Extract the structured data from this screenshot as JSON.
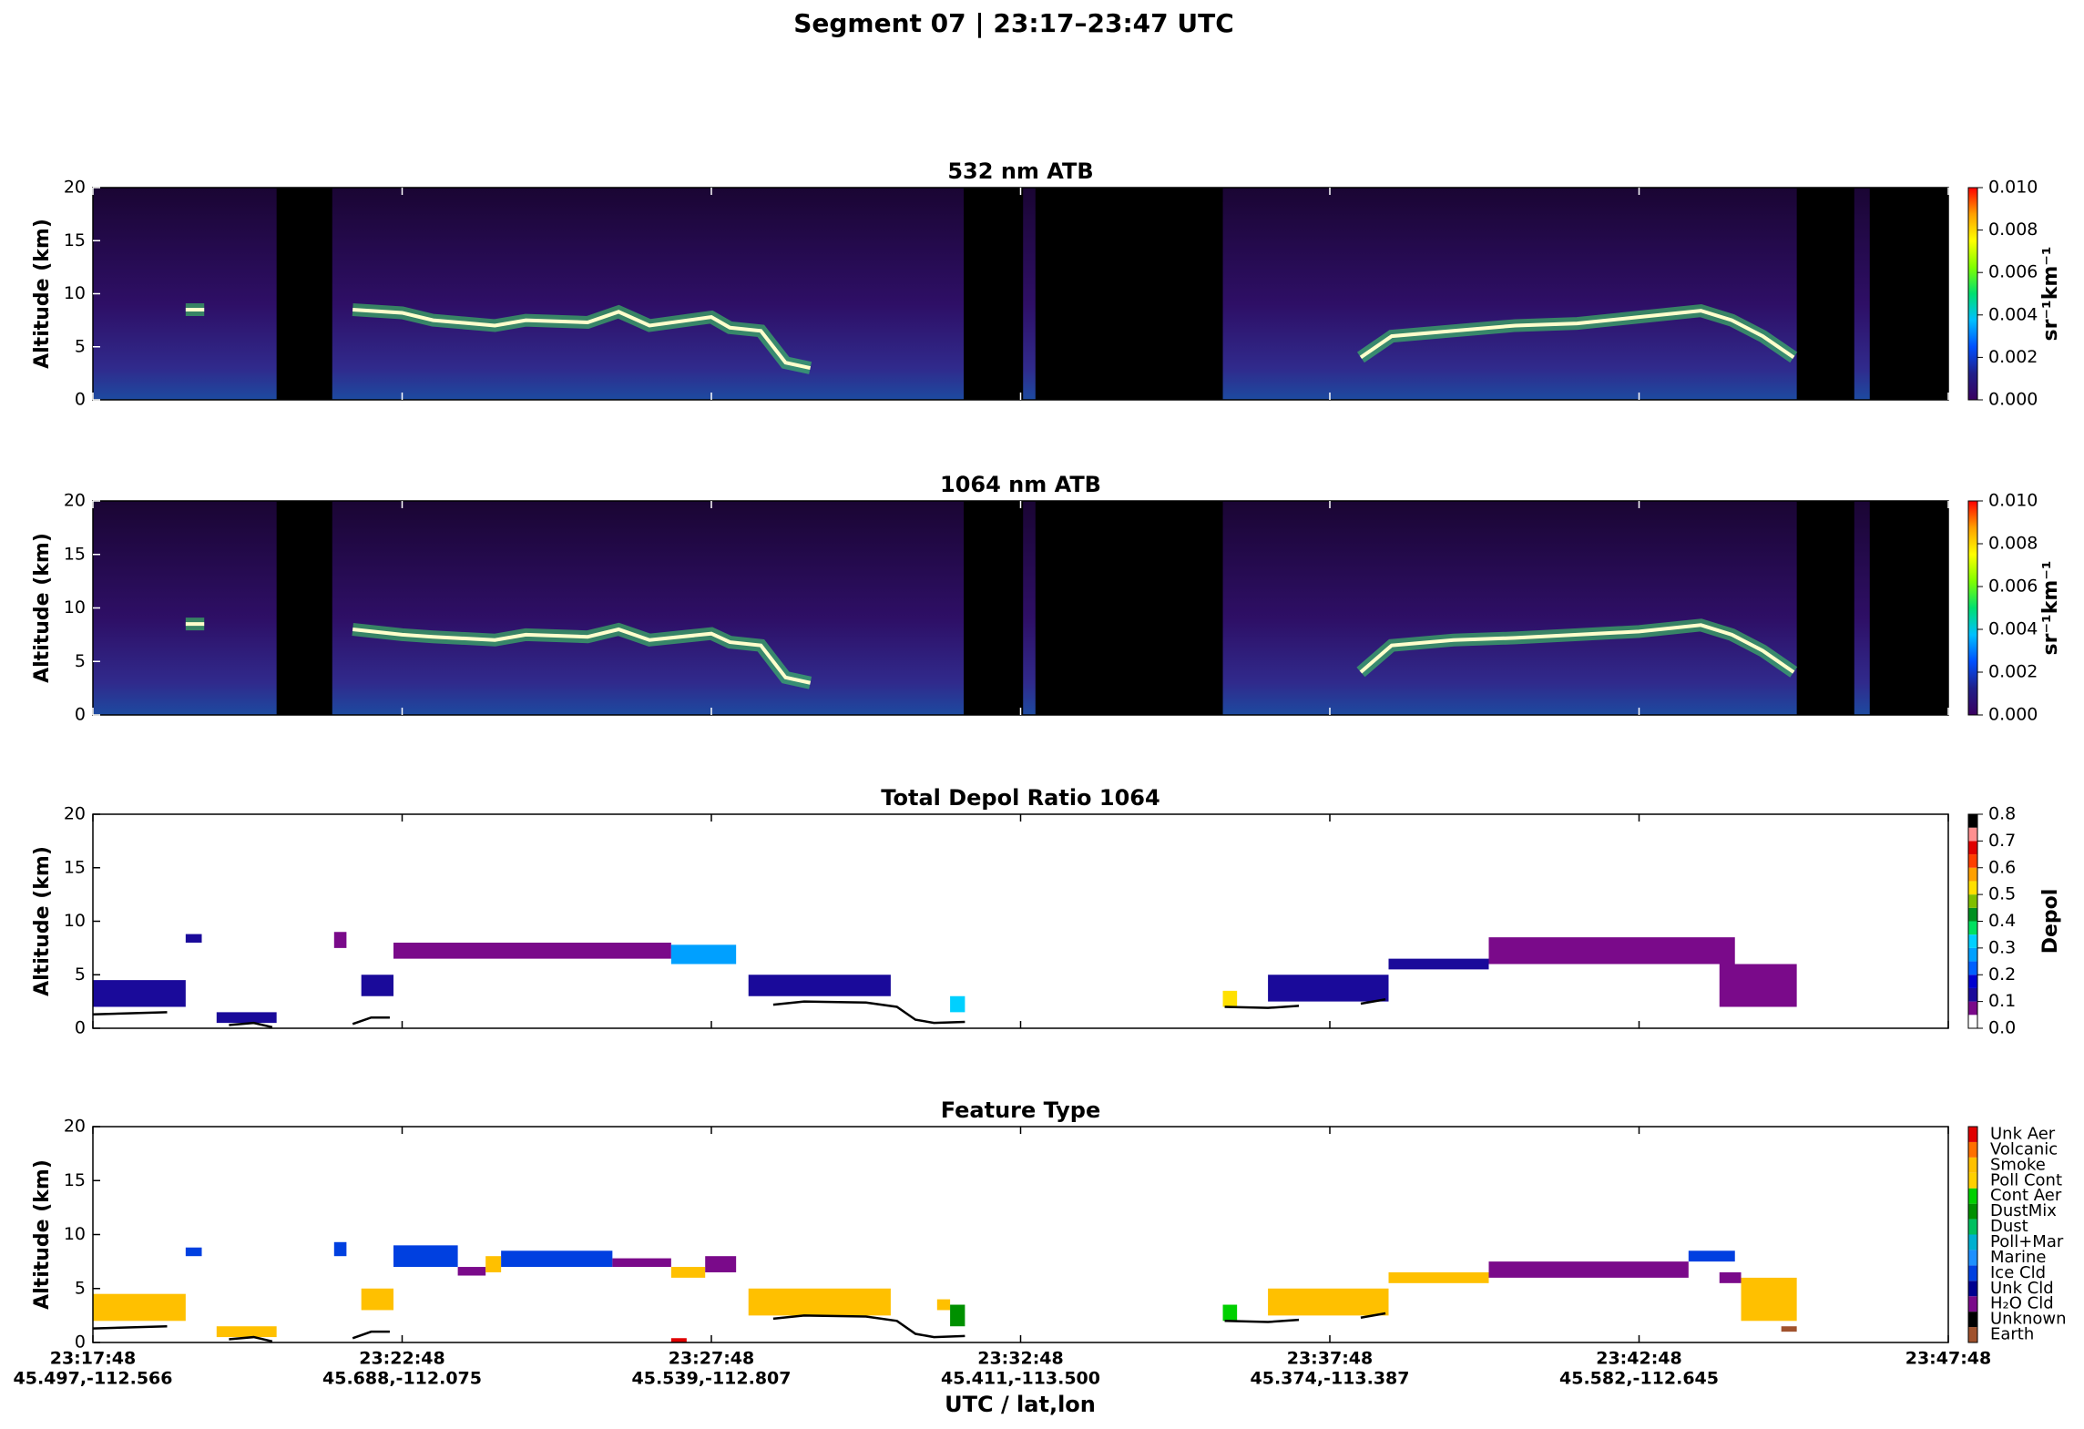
{
  "header": {
    "title": "Segment 07  |  23:17–23:47 UTC"
  },
  "x_axis": {
    "label": "UTC / lat,lon",
    "xlim": [
      0,
      30
    ],
    "xticks": [
      {
        "value": 0,
        "label": "23:17:48",
        "sublabel": "45.497,-112.566"
      },
      {
        "value": 5,
        "label": "23:22:48",
        "sublabel": "45.688,-112.075"
      },
      {
        "value": 10,
        "label": "23:27:48",
        "sublabel": "45.539,-112.807"
      },
      {
        "value": 15,
        "label": "23:32:48",
        "sublabel": "45.411,-113.500"
      },
      {
        "value": 20,
        "label": "23:37:48",
        "sublabel": "45.374,-113.387"
      },
      {
        "value": 25,
        "label": "23:42:48",
        "sublabel": "45.582,-112.645"
      },
      {
        "value": 30,
        "label": "23:47:48"
      }
    ]
  },
  "chart_data": [
    {
      "type": "curtain",
      "title": "532 nm ATB",
      "ylabel": "Altitude (km)",
      "ylim": [
        0,
        20
      ],
      "yticks": [
        0,
        5,
        10,
        15,
        20
      ],
      "gaps": [
        [
          2.97,
          3.87
        ],
        [
          14.08,
          15.04
        ],
        [
          15.24,
          18.27
        ],
        [
          27.55,
          28.48
        ],
        [
          28.73,
          30
        ]
      ],
      "cloud_top": {
        "x": [
          1.5,
          1.8,
          2.0,
          4.2,
          5.0,
          5.5,
          6.5,
          7.0,
          8.0,
          8.5,
          9.0,
          10.0,
          10.3,
          10.8,
          11.2,
          11.6,
          12.0,
          20.5,
          21.0,
          22.0,
          23.0,
          24.0,
          25.0,
          26.0,
          26.5,
          27.0,
          27.5
        ],
        "values": [
          8.5,
          8.5,
          null,
          8.5,
          8.2,
          7.5,
          7.0,
          7.5,
          7.3,
          8.3,
          7.0,
          7.8,
          6.8,
          6.5,
          3.5,
          3.0,
          null,
          4.0,
          6.0,
          6.5,
          7.0,
          7.2,
          7.8,
          8.4,
          7.5,
          6.0,
          4.0
        ]
      },
      "colorbar": {
        "label": "sr⁻¹km⁻¹",
        "clim": [
          0,
          0.01
        ],
        "colors": [
          "#3a0060",
          "#20208a",
          "#0050ff",
          "#00c0ff",
          "#00e070",
          "#80ff00",
          "#ffff00",
          "#ffa000",
          "#ff0000"
        ],
        "ticks": [
          {
            "value": 0,
            "label": "0.000"
          },
          {
            "value": 0.002,
            "label": "0.002"
          },
          {
            "value": 0.004,
            "label": "0.004"
          },
          {
            "value": 0.006,
            "label": "0.006"
          },
          {
            "value": 0.008,
            "label": "0.008"
          },
          {
            "value": 0.01,
            "label": "0.010"
          }
        ]
      }
    },
    {
      "type": "curtain",
      "title": "1064 nm ATB",
      "ylabel": "Altitude (km)",
      "ylim": [
        0,
        20
      ],
      "yticks": [
        0,
        5,
        10,
        15,
        20
      ],
      "gaps": [
        [
          2.97,
          3.87
        ],
        [
          14.08,
          15.04
        ],
        [
          15.24,
          18.27
        ],
        [
          27.55,
          28.48
        ],
        [
          28.73,
          30
        ]
      ],
      "cloud_top": {
        "x": [
          1.5,
          1.8,
          2.0,
          4.2,
          5.0,
          5.5,
          6.5,
          7.0,
          8.0,
          8.5,
          9.0,
          10.0,
          10.3,
          10.8,
          11.2,
          11.6,
          12.0,
          20.5,
          21.0,
          22.0,
          23.0,
          24.0,
          25.0,
          26.0,
          26.5,
          27.0,
          27.5
        ],
        "values": [
          8.5,
          8.5,
          null,
          8.0,
          7.5,
          7.3,
          7.0,
          7.5,
          7.3,
          8.0,
          7.0,
          7.6,
          6.8,
          6.5,
          3.5,
          3.0,
          null,
          4.0,
          6.5,
          7.0,
          7.2,
          7.5,
          7.8,
          8.4,
          7.5,
          6.0,
          4.0
        ]
      },
      "colorbar": {
        "label": "sr⁻¹km⁻¹",
        "clim": [
          0,
          0.01
        ],
        "colors": [
          "#3a0060",
          "#20208a",
          "#0050ff",
          "#00c0ff",
          "#00e070",
          "#80ff00",
          "#ffff00",
          "#ffa000",
          "#ff0000"
        ],
        "ticks": [
          {
            "value": 0,
            "label": "0.000"
          },
          {
            "value": 0.002,
            "label": "0.002"
          },
          {
            "value": 0.004,
            "label": "0.004"
          },
          {
            "value": 0.006,
            "label": "0.006"
          },
          {
            "value": 0.008,
            "label": "0.008"
          },
          {
            "value": 0.01,
            "label": "0.010"
          }
        ]
      }
    },
    {
      "type": "depol",
      "title": "Total Depol Ratio 1064",
      "ylabel": "Altitude (km)",
      "ylim": [
        0,
        20
      ],
      "yticks": [
        0,
        5,
        10,
        15,
        20
      ],
      "ground": {
        "x": [
          0,
          1.2,
          1.5,
          2.2,
          2.6,
          2.9,
          3.0,
          4.2,
          4.5,
          4.8,
          5.0,
          11.0,
          11.5,
          12.5,
          13.0,
          13.3,
          13.6,
          14.1,
          14.2,
          18.3,
          19.0,
          19.5,
          19.6,
          20.5,
          20.9,
          21.0
        ],
        "values": [
          1.3,
          1.5,
          null,
          0.3,
          0.5,
          0.1,
          null,
          0.4,
          1.0,
          1.0,
          null,
          2.2,
          2.5,
          2.4,
          2.0,
          0.8,
          0.5,
          0.6,
          null,
          2.0,
          1.9,
          2.1,
          null,
          2.3,
          2.7,
          null
        ]
      },
      "layers": [
        {
          "t0": 0,
          "t1": 1.5,
          "base": 2,
          "top": 4.5,
          "depol": 0.12
        },
        {
          "t0": 1.5,
          "t1": 1.76,
          "base": 8,
          "top": 8.8,
          "depol": 0.15
        },
        {
          "t0": 2.0,
          "t1": 2.97,
          "base": 0.5,
          "top": 1.5,
          "depol": 0.12
        },
        {
          "t0": 3.9,
          "t1": 4.1,
          "base": 7.5,
          "top": 9,
          "depol": 0.08
        },
        {
          "t0": 4.34,
          "t1": 4.86,
          "base": 3,
          "top": 5,
          "depol": 0.1
        },
        {
          "t0": 4.86,
          "t1": 9.35,
          "base": 6.5,
          "top": 8,
          "depol": 0.05
        },
        {
          "t0": 9.35,
          "t1": 10.4,
          "base": 6,
          "top": 7.8,
          "depol": 0.25
        },
        {
          "t0": 10.6,
          "t1": 12.9,
          "base": 3,
          "top": 5,
          "depol": 0.1
        },
        {
          "t0": 13.86,
          "t1": 14.1,
          "base": 1.5,
          "top": 3,
          "depol": 0.35
        },
        {
          "t0": 18.27,
          "t1": 18.5,
          "base": 2,
          "top": 3.5,
          "depol": 0.5
        },
        {
          "t0": 19.0,
          "t1": 20.95,
          "base": 2.5,
          "top": 5,
          "depol": 0.1
        },
        {
          "t0": 20.95,
          "t1": 22.57,
          "base": 5.5,
          "top": 6.5,
          "depol": 0.1
        },
        {
          "t0": 22.57,
          "t1": 26.55,
          "base": 6,
          "top": 8.5,
          "depol": 0.05
        },
        {
          "t0": 26.3,
          "t1": 27.55,
          "base": 2,
          "top": 6,
          "depol": 0.05
        }
      ],
      "colorbar": {
        "label": "Depol",
        "clim": [
          0,
          0.8
        ],
        "colors": [
          "#ffffff",
          "#7a0a8a",
          "#1a0a9a",
          "#0000d0",
          "#0060ff",
          "#00a0ff",
          "#00d0ff",
          "#00e060",
          "#009020",
          "#80c000",
          "#ffe000",
          "#ffa000",
          "#ff4000",
          "#e00000",
          "#ff9090",
          "#000000"
        ],
        "ticks": [
          {
            "value": 0,
            "label": "0.0"
          },
          {
            "value": 0.1,
            "label": "0.1"
          },
          {
            "value": 0.2,
            "label": "0.2"
          },
          {
            "value": 0.3,
            "label": "0.3"
          },
          {
            "value": 0.4,
            "label": "0.4"
          },
          {
            "value": 0.5,
            "label": "0.5"
          },
          {
            "value": 0.6,
            "label": "0.6"
          },
          {
            "value": 0.7,
            "label": "0.7"
          },
          {
            "value": 0.8,
            "label": "0.8"
          }
        ]
      }
    },
    {
      "type": "feature",
      "title": "Feature Type",
      "ylabel": "Altitude (km)",
      "ylim": [
        0,
        20
      ],
      "yticks": [
        0,
        5,
        10,
        15,
        20
      ],
      "ground": {
        "x": [
          0,
          1.2,
          1.5,
          2.2,
          2.6,
          2.9,
          3.0,
          4.2,
          4.5,
          4.8,
          5.0,
          11.0,
          11.5,
          12.5,
          13.0,
          13.3,
          13.6,
          14.1,
          14.2,
          18.3,
          19.0,
          19.5,
          19.6,
          20.5,
          20.9,
          21.0
        ],
        "values": [
          1.3,
          1.5,
          null,
          0.3,
          0.5,
          0.1,
          null,
          0.4,
          1.0,
          1.0,
          null,
          2.2,
          2.5,
          2.4,
          2.0,
          0.8,
          0.5,
          0.6,
          null,
          2.0,
          1.9,
          2.1,
          null,
          2.3,
          2.7,
          null
        ]
      },
      "categories": [
        "Earth",
        "Unknown",
        "H₂O Cld",
        "Unk Cld",
        "Ice Cld",
        "Marine",
        "Poll+Mar",
        "Dust",
        "DustMix",
        "Cont Aer",
        "Poll Cont",
        "Smoke",
        "Volcanic",
        "Unk Aer"
      ],
      "colors": [
        "#a0522d",
        "#000000",
        "#7a0a8a",
        "#000090",
        "#0040e0",
        "#1e90ff",
        "#00b0d0",
        "#00c060",
        "#009000",
        "#00d000",
        "#ffd000",
        "#ffc000",
        "#ff7000",
        "#e00000"
      ],
      "layers": [
        {
          "t0": 0,
          "t1": 1.5,
          "base": 2,
          "top": 4.5,
          "feature": 11
        },
        {
          "t0": 1.5,
          "t1": 1.76,
          "base": 8,
          "top": 8.8,
          "feature": 4
        },
        {
          "t0": 2.0,
          "t1": 2.97,
          "base": 0.5,
          "top": 1.5,
          "feature": 11
        },
        {
          "t0": 3.9,
          "t1": 4.1,
          "base": 8,
          "top": 9.3,
          "feature": 4
        },
        {
          "t0": 4.34,
          "t1": 4.86,
          "base": 3,
          "top": 5,
          "feature": 11
        },
        {
          "t0": 4.86,
          "t1": 5.9,
          "base": 7,
          "top": 9,
          "feature": 4
        },
        {
          "t0": 5.9,
          "t1": 6.35,
          "base": 6.2,
          "top": 7,
          "feature": 2
        },
        {
          "t0": 6.35,
          "t1": 6.6,
          "base": 6.5,
          "top": 8,
          "feature": 11
        },
        {
          "t0": 6.6,
          "t1": 8.4,
          "base": 7,
          "top": 8.5,
          "feature": 4
        },
        {
          "t0": 8.4,
          "t1": 9.35,
          "base": 7,
          "top": 7.8,
          "feature": 2
        },
        {
          "t0": 9.35,
          "t1": 9.6,
          "base": 0,
          "top": 0.4,
          "feature": 13
        },
        {
          "t0": 9.35,
          "t1": 9.9,
          "base": 6,
          "top": 7,
          "feature": 11
        },
        {
          "t0": 9.9,
          "t1": 10.4,
          "base": 6.5,
          "top": 8,
          "feature": 2
        },
        {
          "t0": 10.6,
          "t1": 12.9,
          "base": 2.5,
          "top": 5,
          "feature": 11
        },
        {
          "t0": 13.65,
          "t1": 13.86,
          "base": 3,
          "top": 4,
          "feature": 11
        },
        {
          "t0": 13.86,
          "t1": 14.1,
          "base": 1.5,
          "top": 3.5,
          "feature": 8
        },
        {
          "t0": 18.27,
          "t1": 18.5,
          "base": 2,
          "top": 3.5,
          "feature": 9
        },
        {
          "t0": 19.0,
          "t1": 20.95,
          "base": 2.5,
          "top": 5,
          "feature": 11
        },
        {
          "t0": 20.95,
          "t1": 22.57,
          "base": 5.5,
          "top": 6.5,
          "feature": 11
        },
        {
          "t0": 22.57,
          "t1": 25.8,
          "base": 6,
          "top": 7.5,
          "feature": 2
        },
        {
          "t0": 25.8,
          "t1": 26.55,
          "base": 7.5,
          "top": 8.5,
          "feature": 4
        },
        {
          "t0": 26.3,
          "t1": 26.65,
          "base": 5.5,
          "top": 6.5,
          "feature": 2
        },
        {
          "t0": 26.65,
          "t1": 27.55,
          "base": 2,
          "top": 6,
          "feature": 11
        },
        {
          "t0": 27.3,
          "t1": 27.55,
          "base": 1,
          "top": 1.5,
          "feature": 0
        }
      ]
    }
  ]
}
